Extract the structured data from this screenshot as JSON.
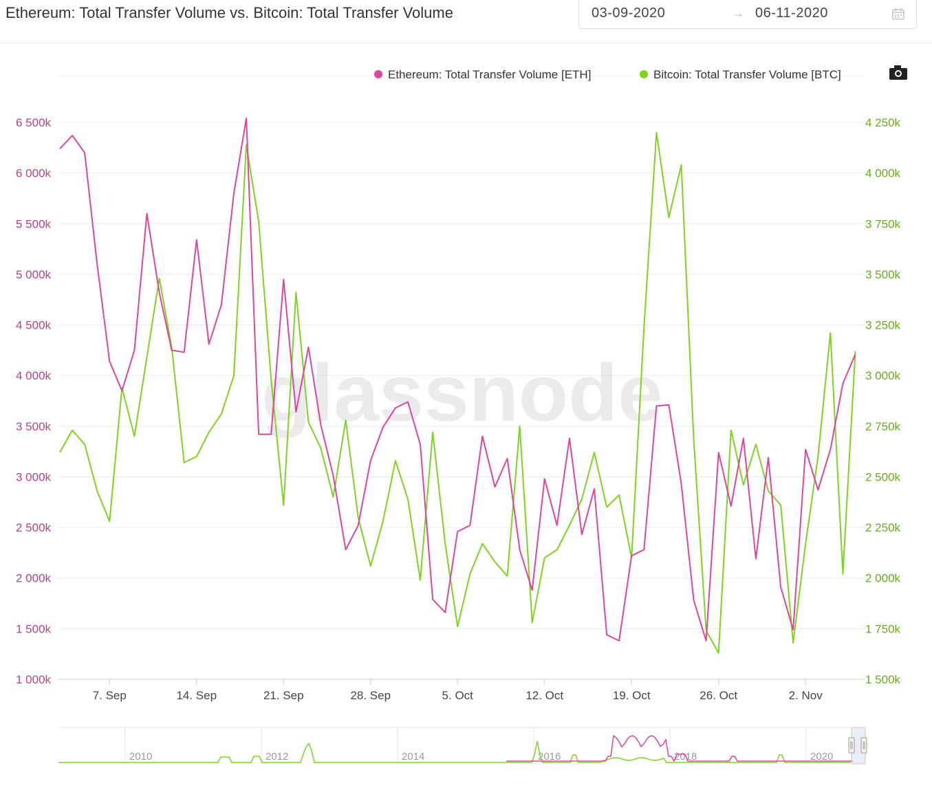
{
  "header": {
    "title": "Ethereum: Total Transfer Volume vs. Bitcoin: Total Transfer Volume",
    "date_from": "03-09-2020",
    "date_arrow": "→",
    "date_to": "06-11-2020"
  },
  "watermark": "glassnode",
  "colors": {
    "eth": "#e0449a",
    "btc": "#7ed321",
    "left_axis": "#b5457e",
    "right_axis": "#6aab1e"
  },
  "icons": {
    "calendar": "calendar-icon",
    "camera": "camera-icon"
  },
  "chart_data": {
    "type": "line",
    "title": "Ethereum: Total Transfer Volume vs. Bitcoin: Total Transfer Volume",
    "x_tick_labels": [
      "7. Sep",
      "14. Sep",
      "21. Sep",
      "28. Sep",
      "5. Oct",
      "12. Oct",
      "19. Oct",
      "26. Oct",
      "2. Nov"
    ],
    "y_left": {
      "ticks": [
        "1 000k",
        "1 500k",
        "2 000k",
        "2 500k",
        "3 000k",
        "3 500k",
        "4 000k",
        "4 500k",
        "5 000k",
        "5 500k",
        "6 000k",
        "6 500k"
      ],
      "range": [
        1000000,
        6500000
      ]
    },
    "y_right": {
      "ticks": [
        "1 500k",
        "1 750k",
        "2 000k",
        "2 250k",
        "2 500k",
        "2 750k",
        "3 000k",
        "3 250k",
        "3 500k",
        "3 750k",
        "4 000k",
        "4 250k"
      ],
      "range": [
        1500000,
        4250000
      ]
    },
    "legend_position": "top-right",
    "grid": true,
    "series": [
      {
        "name": "Ethereum: Total Transfer Volume [ETH]",
        "axis": "left",
        "x_start": "2020-09-03",
        "values": [
          6240000,
          6370000,
          6200000,
          5100000,
          4140000,
          3850000,
          4250000,
          5600000,
          4820000,
          4250000,
          4230000,
          5340000,
          4310000,
          4700000,
          5800000,
          6540000,
          3420000,
          3420000,
          4950000,
          3640000,
          4280000,
          3510000,
          3010000,
          2280000,
          2520000,
          3160000,
          3490000,
          3680000,
          3740000,
          3320000,
          1790000,
          1660000,
          2460000,
          2520000,
          3400000,
          2900000,
          3180000,
          2280000,
          1880000,
          2980000,
          2520000,
          3380000,
          2430000,
          2880000,
          1440000,
          1380000,
          2220000,
          2280000,
          3700000,
          3710000,
          2930000,
          1780000,
          1380000,
          3240000,
          2710000,
          3380000,
          2190000,
          3190000,
          1910000,
          1490000,
          3270000,
          2870000,
          3270000,
          3920000,
          4210000
        ]
      },
      {
        "name": "Bitcoin: Total Transfer Volume [BTC]",
        "axis": "right",
        "x_start": "2020-09-03",
        "values": [
          2620000,
          2730000,
          2660000,
          2430000,
          2280000,
          2940000,
          2700000,
          3090000,
          3480000,
          3140000,
          2570000,
          2600000,
          2720000,
          2810000,
          3000000,
          4140000,
          3760000,
          2980000,
          2360000,
          3410000,
          2770000,
          2640000,
          2400000,
          2780000,
          2300000,
          2060000,
          2280000,
          2580000,
          2390000,
          1990000,
          2720000,
          2170000,
          1760000,
          2020000,
          2170000,
          2080000,
          2010000,
          2750000,
          1780000,
          2100000,
          2140000,
          2260000,
          2390000,
          2620000,
          2350000,
          2410000,
          2100000,
          3240000,
          4200000,
          3780000,
          4040000,
          2680000,
          1740000,
          1630000,
          2730000,
          2460000,
          2660000,
          2430000,
          2360000,
          1680000,
          2170000,
          2600000,
          3210000,
          2020000,
          3120000
        ]
      }
    ],
    "navigator": {
      "year_labels": [
        "2010",
        "2012",
        "2014",
        "2016",
        "2018",
        "2020"
      ]
    }
  }
}
